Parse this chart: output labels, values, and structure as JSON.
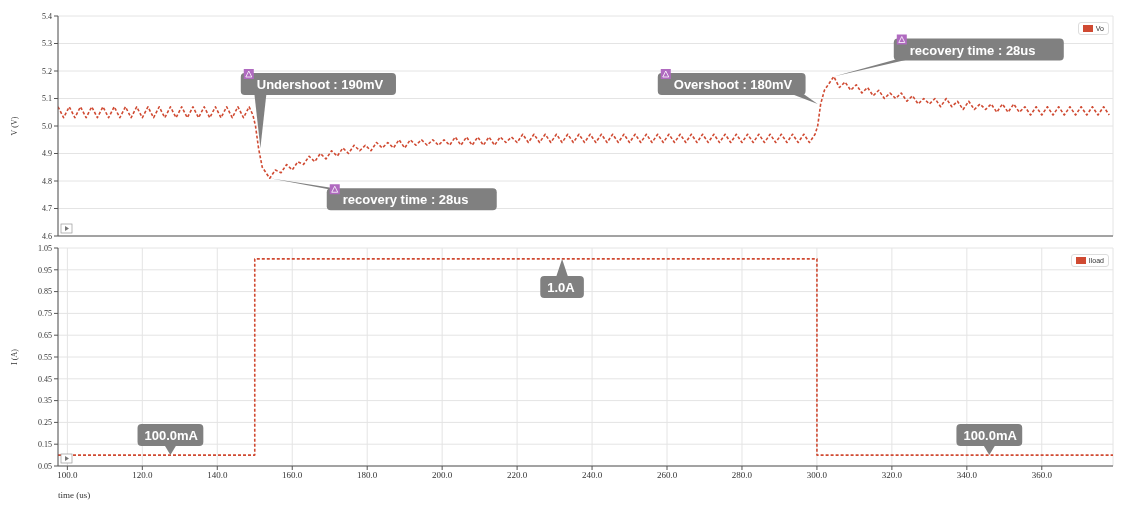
{
  "chart_data": [
    {
      "type": "line",
      "ylabel": "V (V)",
      "xlim": [
        97.5,
        379
      ],
      "ylim": [
        4.6,
        5.4
      ],
      "xticks": [
        100,
        120,
        140,
        160,
        180,
        200,
        220,
        240,
        260,
        280,
        300,
        320,
        340,
        360
      ],
      "yticks": [
        4.6,
        4.7,
        4.8,
        4.9,
        {
          "value": 5,
          "label": "5.0"
        },
        5.1,
        5.2,
        5.3,
        5.4
      ],
      "tick_labels": "y",
      "grid": true,
      "legend": "top right",
      "marker": "none",
      "line_style": "dashed",
      "series": [
        {
          "name": "Vo",
          "color": "#d04a32",
          "x": [
            97.5,
            99,
            100.5,
            102,
            103.5,
            105,
            106.5,
            108,
            109.5,
            111,
            112.5,
            114,
            115.5,
            117,
            118.5,
            120,
            121.5,
            123,
            124.5,
            126,
            127.5,
            129,
            130.5,
            132,
            133.5,
            135,
            136.5,
            138,
            139.5,
            141,
            142.5,
            144,
            145.5,
            147,
            148.5,
            149.5,
            150.2,
            151,
            152,
            153,
            154,
            155.5,
            157,
            158.5,
            160,
            161.5,
            163,
            164.5,
            166,
            167.5,
            169,
            170.5,
            172,
            173.5,
            175,
            176.5,
            178,
            179.5,
            181,
            182.5,
            184,
            185.5,
            187,
            188.5,
            190,
            191.5,
            193,
            194.5,
            196,
            197.5,
            199,
            200.5,
            202,
            203.5,
            205,
            206.5,
            208,
            209.5,
            211,
            212.5,
            214,
            215.5,
            217,
            218.5,
            220,
            221.5,
            223,
            224.5,
            226,
            227.5,
            229,
            230.5,
            232,
            233.5,
            235,
            236.5,
            238,
            239.5,
            241,
            242.5,
            244,
            245.5,
            247,
            248.5,
            250,
            251.5,
            253,
            254.5,
            256,
            257.5,
            259,
            260.5,
            262,
            263.5,
            265,
            266.5,
            268,
            269.5,
            271,
            272.5,
            274,
            275.5,
            277,
            278.5,
            280,
            281.5,
            283,
            284.5,
            286,
            287.5,
            289,
            290.5,
            292,
            293.5,
            295,
            296.5,
            298,
            299.5,
            300.2,
            301,
            302,
            303,
            304.5,
            306,
            307.5,
            309,
            310.5,
            312,
            313.5,
            315,
            316.5,
            318,
            319.5,
            321,
            322.5,
            324,
            325.5,
            327,
            328.5,
            330,
            331.5,
            333,
            334.5,
            336,
            337.5,
            339,
            340.5,
            342,
            343.5,
            345,
            346.5,
            348,
            349.5,
            351,
            352.5,
            354,
            355.5,
            357,
            358.5,
            360,
            361.5,
            363,
            364.5,
            366,
            367.5,
            369,
            370.5,
            372,
            373.5,
            375,
            376.5,
            378
          ],
          "values": [
            5.07,
            5.03,
            5.07,
            5.03,
            5.07,
            5.03,
            5.07,
            5.03,
            5.07,
            5.03,
            5.07,
            5.03,
            5.07,
            5.03,
            5.07,
            5.03,
            5.07,
            5.03,
            5.07,
            5.03,
            5.07,
            5.03,
            5.07,
            5.03,
            5.07,
            5.03,
            5.07,
            5.03,
            5.07,
            5.03,
            5.07,
            5.03,
            5.07,
            5.03,
            5.07,
            5.04,
            5.0,
            4.92,
            4.85,
            4.83,
            4.81,
            4.84,
            4.83,
            4.86,
            4.84,
            4.87,
            4.86,
            4.89,
            4.87,
            4.9,
            4.88,
            4.91,
            4.89,
            4.92,
            4.9,
            4.93,
            4.91,
            4.93,
            4.91,
            4.94,
            4.92,
            4.94,
            4.92,
            4.95,
            4.92,
            4.95,
            4.93,
            4.95,
            4.93,
            4.95,
            4.93,
            4.95,
            4.93,
            4.96,
            4.93,
            4.96,
            4.93,
            4.96,
            4.93,
            4.96,
            4.93,
            4.96,
            4.94,
            4.96,
            4.94,
            4.97,
            4.94,
            4.97,
            4.94,
            4.97,
            4.94,
            4.97,
            4.94,
            4.97,
            4.94,
            4.97,
            4.94,
            4.97,
            4.94,
            4.97,
            4.94,
            4.97,
            4.94,
            4.97,
            4.94,
            4.97,
            4.94,
            4.97,
            4.94,
            4.97,
            4.94,
            4.97,
            4.94,
            4.97,
            4.94,
            4.97,
            4.94,
            4.97,
            4.94,
            4.97,
            4.94,
            4.97,
            4.94,
            4.97,
            4.94,
            4.97,
            4.94,
            4.97,
            4.94,
            4.97,
            4.94,
            4.97,
            4.94,
            4.97,
            4.94,
            4.97,
            4.94,
            4.97,
            5.0,
            5.08,
            5.13,
            5.15,
            5.18,
            5.14,
            5.16,
            5.13,
            5.15,
            5.12,
            5.14,
            5.11,
            5.13,
            5.1,
            5.12,
            5.1,
            5.12,
            5.09,
            5.11,
            5.08,
            5.1,
            5.08,
            5.1,
            5.07,
            5.1,
            5.07,
            5.09,
            5.06,
            5.09,
            5.06,
            5.08,
            5.06,
            5.08,
            5.05,
            5.08,
            5.05,
            5.08,
            5.05,
            5.07,
            5.04,
            5.07,
            5.04,
            5.07,
            5.04,
            5.07,
            5.04,
            5.07,
            5.04,
            5.07,
            5.04,
            5.07,
            5.04,
            5.07,
            5.04
          ]
        }
      ],
      "annotations": [
        {
          "text": "Undershoot : 190mV",
          "x": 151.5,
          "y": 4.92
        },
        {
          "text": "recovery time : 28us",
          "x": 154,
          "y": 4.81
        },
        {
          "text": "Overshoot : 180mV",
          "x": 300.2,
          "y": 5.08
        },
        {
          "text": "recovery time : 28us",
          "x": 304.5,
          "y": 5.18
        }
      ]
    },
    {
      "type": "step",
      "ylabel": "I (A)",
      "xlabel": "time (us)",
      "xlim": [
        97.5,
        379
      ],
      "ylim": [
        0.05,
        1.05
      ],
      "xticks": [
        {
          "value": 100,
          "label": "100.0"
        },
        {
          "value": 120,
          "label": "120.0"
        },
        {
          "value": 140,
          "label": "140.0"
        },
        {
          "value": 160,
          "label": "160.0"
        },
        {
          "value": 180,
          "label": "180.0"
        },
        {
          "value": 200,
          "label": "200.0"
        },
        {
          "value": 220,
          "label": "220.0"
        },
        {
          "value": 240,
          "label": "240.0"
        },
        {
          "value": 260,
          "label": "260.0"
        },
        {
          "value": 280,
          "label": "280.0"
        },
        {
          "value": 300,
          "label": "300.0"
        },
        {
          "value": 320,
          "label": "320.0"
        },
        {
          "value": 340,
          "label": "340.0"
        },
        {
          "value": 360,
          "label": "360.0"
        }
      ],
      "yticks": [
        0.05,
        0.15,
        0.25,
        0.35,
        0.45,
        0.55,
        0.65,
        0.75,
        0.85,
        0.95,
        1.05
      ],
      "grid": true,
      "legend": "top right",
      "marker": "none",
      "line_style": "dashed",
      "series": [
        {
          "name": "Iload",
          "color": "#d04a32",
          "x": [
            97.5,
            150,
            300,
            379
          ],
          "values": [
            0.1,
            1.0,
            0.1,
            0.1
          ]
        }
      ],
      "annotations": [
        {
          "text": "100.0mA",
          "x": 127.5,
          "y": 0.1
        },
        {
          "text": "1.0A",
          "x": 232,
          "y": 1.0
        },
        {
          "text": "100.0mA",
          "x": 346,
          "y": 0.1
        }
      ]
    }
  ]
}
